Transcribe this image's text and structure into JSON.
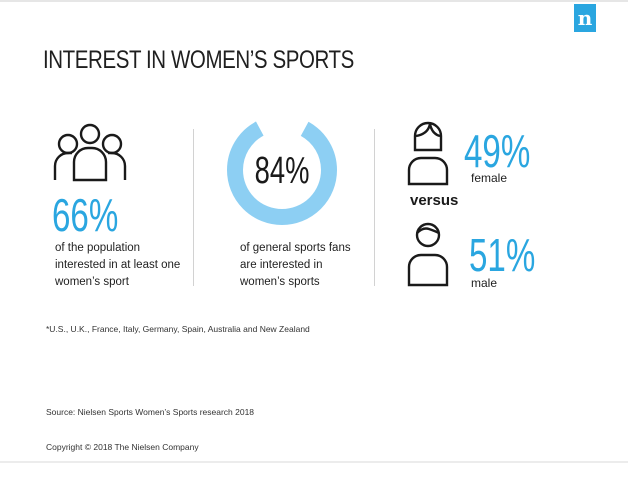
{
  "logo": {
    "letter": "n",
    "color": "#2aa6e0"
  },
  "title": "INTEREST IN WOMEN’S SPORTS",
  "accent_color": "#2aa6e0",
  "donut_color": "#8dcff3",
  "left_panel": {
    "icon": "group-of-people-icon",
    "stat": "66%",
    "caption": "of the population interested in at least one women’s sport"
  },
  "middle_panel": {
    "stat": "84%",
    "fill_fraction": 0.84,
    "caption": "of general sports fans are interested in women’s sports"
  },
  "right_panel": {
    "female": {
      "icon": "female-person-icon",
      "stat": "49%",
      "label": "female"
    },
    "versus": "versus",
    "male": {
      "icon": "male-person-icon",
      "stat": "51%",
      "label": "male"
    }
  },
  "footnote": "*U.S., U.K., France, Italy, Germany, Spain, Australia and New Zealand",
  "source": "Source: Nielsen Sports Women’s Sports research 2018",
  "copyright": "Copyright © 2018 The Nielsen Company"
}
